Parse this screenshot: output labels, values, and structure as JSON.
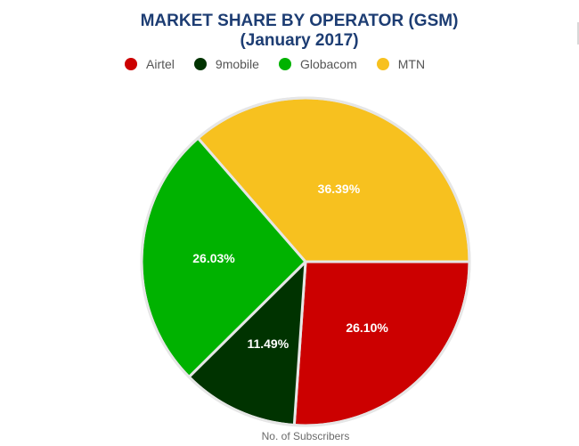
{
  "chart_data": {
    "type": "pie",
    "title": "MARKET SHARE BY OPERATOR (GSM)",
    "subtitle": "(January 2017)",
    "caption": "No. of Subscribers",
    "legend_position": "top",
    "slices": [
      {
        "name": "Airtel",
        "value": 26.1,
        "label": "26.10%",
        "color": "#cc0000"
      },
      {
        "name": "9mobile",
        "value": 11.49,
        "label": "11.49%",
        "color": "#003300"
      },
      {
        "name": "Globacom",
        "value": 26.03,
        "label": "26.03%",
        "color": "#00b200"
      },
      {
        "name": "MTN",
        "value": 36.39,
        "label": "36.39%",
        "color": "#f7c11f"
      }
    ]
  }
}
